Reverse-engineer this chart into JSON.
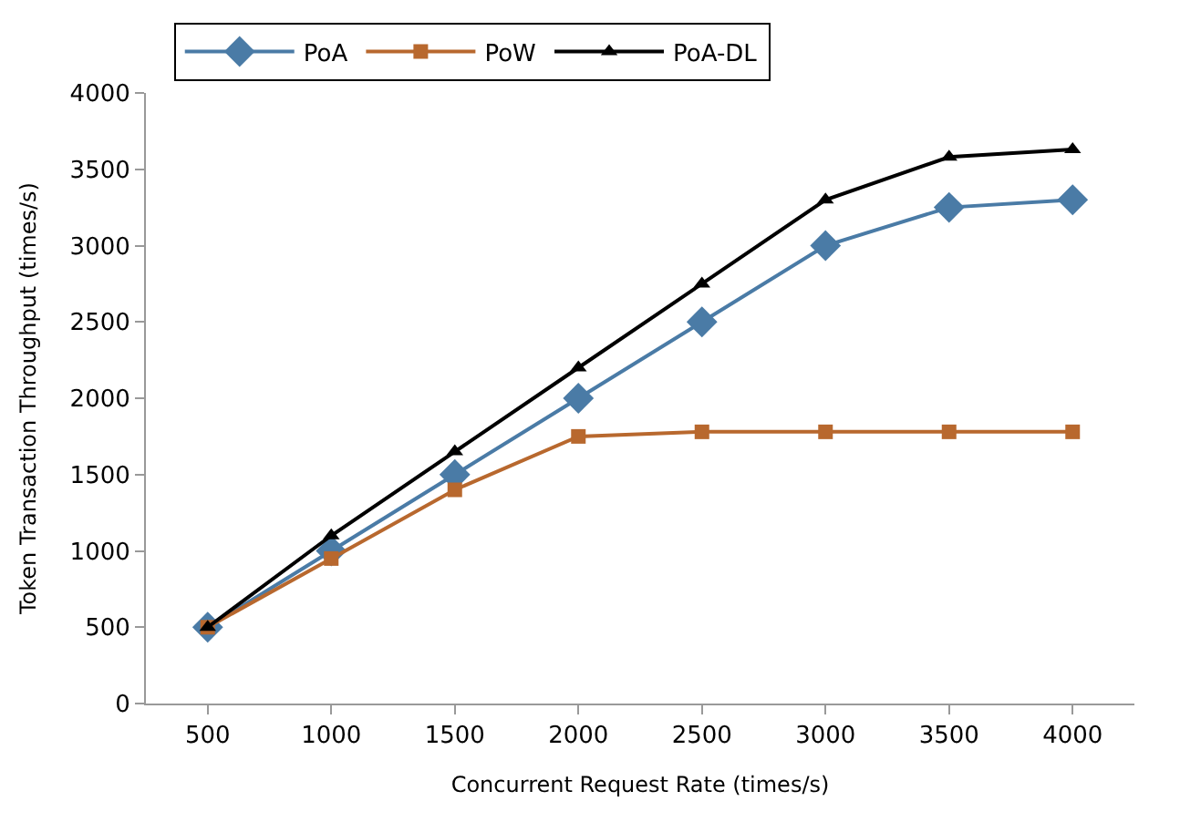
{
  "chart_data": {
    "type": "line",
    "xlabel": "Concurrent Request Rate (times/s)",
    "ylabel": "Token Transaction Throughput (times/s)",
    "categories": [
      "500",
      "1000",
      "1500",
      "2000",
      "2500",
      "3000",
      "3500",
      "4000"
    ],
    "series": [
      {
        "name": "PoA",
        "color": "#4a7ba6",
        "marker": "diamond",
        "values": [
          500,
          1000,
          1500,
          2000,
          2500,
          3000,
          3250,
          3300
        ]
      },
      {
        "name": "PoW",
        "color": "#b8682e",
        "marker": "square",
        "values": [
          500,
          950,
          1400,
          1750,
          1780,
          1780,
          1780,
          1780
        ]
      },
      {
        "name": "PoA-DL",
        "color": "#000000",
        "marker": "triangle",
        "values": [
          500,
          1100,
          1650,
          2200,
          2750,
          3300,
          3580,
          3630
        ]
      }
    ],
    "ylim": [
      0,
      4000
    ],
    "yticks": [
      0,
      500,
      1000,
      1500,
      2000,
      2500,
      3000,
      3500,
      4000
    ],
    "grid": false,
    "legend": "top",
    "line_style": "solid"
  }
}
